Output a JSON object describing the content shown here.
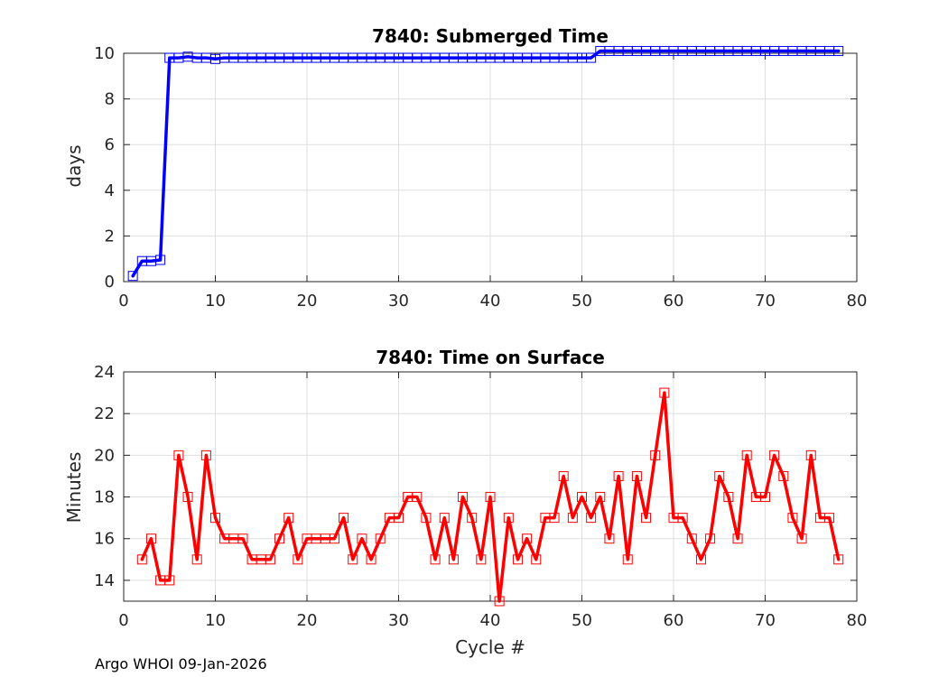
{
  "footer": "Argo WHOI 09-Jan-2026",
  "chart_data": [
    {
      "type": "line",
      "title": "7840: Submerged Time",
      "xlabel": "",
      "ylabel": "days",
      "xlim": [
        0,
        80
      ],
      "ylim": [
        0,
        10
      ],
      "xticks": [
        0,
        10,
        20,
        30,
        40,
        50,
        60,
        70,
        80
      ],
      "yticks": [
        0,
        2,
        4,
        6,
        8,
        10
      ],
      "grid": true,
      "color": "#0000ff",
      "marker": "square",
      "series": [
        {
          "x": [
            1,
            2,
            3,
            4,
            5,
            6,
            7,
            8,
            9,
            10,
            11,
            12,
            13,
            14,
            15,
            16,
            17,
            18,
            19,
            20,
            21,
            22,
            23,
            24,
            25,
            26,
            27,
            28,
            29,
            30,
            31,
            32,
            33,
            34,
            35,
            36,
            37,
            38,
            39,
            40,
            41,
            42,
            43,
            44,
            45,
            46,
            47,
            48,
            49,
            50,
            51,
            52,
            53,
            54,
            55,
            56,
            57,
            58,
            59,
            60,
            61,
            62,
            63,
            64,
            65,
            66,
            67,
            68,
            69,
            70,
            71,
            72,
            73,
            74,
            75,
            76,
            77,
            78
          ],
          "values": [
            0.25,
            0.9,
            0.9,
            0.95,
            9.8,
            9.8,
            9.85,
            9.8,
            9.8,
            9.75,
            9.8,
            9.8,
            9.8,
            9.8,
            9.8,
            9.8,
            9.8,
            9.8,
            9.8,
            9.8,
            9.8,
            9.8,
            9.8,
            9.8,
            9.8,
            9.8,
            9.8,
            9.8,
            9.8,
            9.8,
            9.8,
            9.8,
            9.8,
            9.8,
            9.8,
            9.8,
            9.8,
            9.8,
            9.8,
            9.8,
            9.8,
            9.8,
            9.8,
            9.8,
            9.8,
            9.8,
            9.8,
            9.8,
            9.8,
            9.8,
            9.8,
            10.1,
            10.1,
            10.1,
            10.1,
            10.1,
            10.1,
            10.1,
            10.1,
            10.1,
            10.1,
            10.1,
            10.1,
            10.1,
            10.1,
            10.1,
            10.1,
            10.1,
            10.1,
            10.1,
            10.1,
            10.1,
            10.1,
            10.1,
            10.1,
            10.1,
            10.1,
            10.1
          ]
        }
      ]
    },
    {
      "type": "line",
      "title": "7840: Time on Surface",
      "xlabel": "Cycle #",
      "ylabel": "Minutes",
      "xlim": [
        0,
        80
      ],
      "ylim": [
        13,
        24
      ],
      "xticks": [
        0,
        10,
        20,
        30,
        40,
        50,
        60,
        70,
        80
      ],
      "yticks": [
        14,
        16,
        18,
        20,
        22,
        24
      ],
      "grid": true,
      "color": "#ff0000",
      "marker": "square",
      "series": [
        {
          "x": [
            2,
            3,
            4,
            5,
            6,
            7,
            8,
            9,
            10,
            11,
            12,
            13,
            14,
            15,
            16,
            17,
            18,
            19,
            20,
            21,
            22,
            23,
            24,
            25,
            26,
            27,
            28,
            29,
            30,
            31,
            32,
            33,
            34,
            35,
            36,
            37,
            38,
            39,
            40,
            41,
            42,
            43,
            44,
            45,
            46,
            47,
            48,
            49,
            50,
            51,
            52,
            53,
            54,
            55,
            56,
            57,
            58,
            59,
            60,
            61,
            62,
            63,
            64,
            65,
            66,
            67,
            68,
            69,
            70,
            71,
            72,
            73,
            74,
            75,
            76,
            77,
            78
          ],
          "values": [
            15,
            16,
            14,
            14,
            20,
            18,
            15,
            20,
            17,
            16,
            16,
            16,
            15,
            15,
            15,
            16,
            17,
            15,
            16,
            16,
            16,
            16,
            17,
            15,
            16,
            15,
            16,
            17,
            17,
            18,
            18,
            17,
            15,
            17,
            15,
            18,
            17,
            15,
            18,
            13,
            17,
            15,
            16,
            15,
            17,
            17,
            19,
            17,
            18,
            17,
            18,
            16,
            19,
            15,
            19,
            17,
            20,
            23,
            17,
            17,
            16,
            15,
            16,
            19,
            18,
            16,
            20,
            18,
            18,
            20,
            19,
            17,
            16,
            20,
            17,
            17,
            15
          ]
        }
      ]
    }
  ]
}
